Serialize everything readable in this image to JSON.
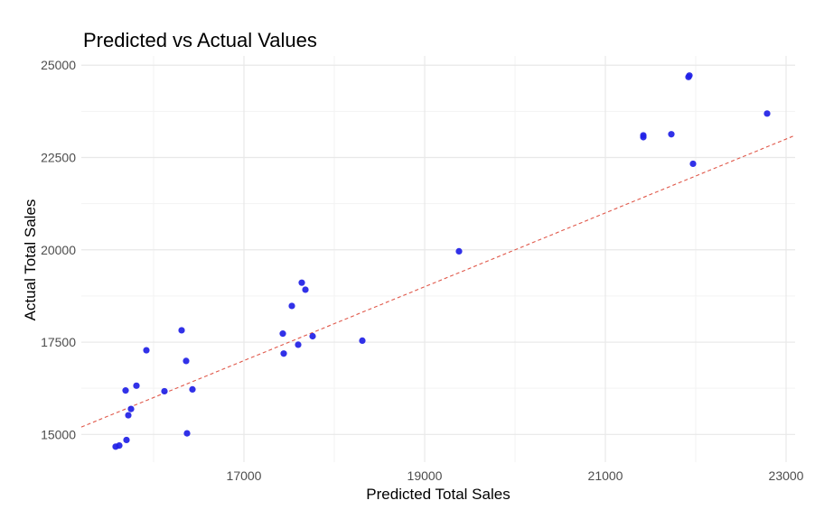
{
  "chart_data": {
    "type": "scatter",
    "title": "Predicted vs Actual Values",
    "xlabel": "Predicted Total Sales",
    "ylabel": "Actual Total Sales",
    "xlim": [
      15200,
      23100
    ],
    "ylim": [
      14250,
      25250
    ],
    "xticks": [
      17000,
      19000,
      21000,
      23000
    ],
    "xtick_labels": [
      "17000",
      "19000",
      "21000",
      "23000"
    ],
    "yticks": [
      15000,
      17500,
      20000,
      22500,
      25000
    ],
    "ytick_labels": [
      "15000",
      "17500",
      "20000",
      "22500",
      "25000"
    ],
    "x_minor_gridlines": [
      16000,
      18000,
      20000,
      22000
    ],
    "y_minor_gridlines": [
      16250,
      18750,
      21250,
      23750
    ],
    "grid": true,
    "legend": "none",
    "point_color": "#1f1fe6",
    "reference_line": {
      "description": "y = x",
      "style": "dashed",
      "color": "#e0584a"
    },
    "points": [
      {
        "x": 15580,
        "y": 14670
      },
      {
        "x": 15620,
        "y": 14700
      },
      {
        "x": 15700,
        "y": 14850
      },
      {
        "x": 15690,
        "y": 16190
      },
      {
        "x": 15720,
        "y": 15520
      },
      {
        "x": 15750,
        "y": 15690
      },
      {
        "x": 15810,
        "y": 16320
      },
      {
        "x": 15920,
        "y": 17280
      },
      {
        "x": 16120,
        "y": 16170
      },
      {
        "x": 16310,
        "y": 17820
      },
      {
        "x": 16360,
        "y": 16990
      },
      {
        "x": 16370,
        "y": 15030
      },
      {
        "x": 16430,
        "y": 16220
      },
      {
        "x": 17430,
        "y": 17730
      },
      {
        "x": 17440,
        "y": 17190
      },
      {
        "x": 17530,
        "y": 18480
      },
      {
        "x": 17600,
        "y": 17430
      },
      {
        "x": 17640,
        "y": 19110
      },
      {
        "x": 17680,
        "y": 18920
      },
      {
        "x": 17760,
        "y": 17660
      },
      {
        "x": 18310,
        "y": 17540
      },
      {
        "x": 19380,
        "y": 19960
      },
      {
        "x": 21420,
        "y": 23050
      },
      {
        "x": 21420,
        "y": 23100
      },
      {
        "x": 21730,
        "y": 23130
      },
      {
        "x": 21920,
        "y": 24680
      },
      {
        "x": 21930,
        "y": 24720
      },
      {
        "x": 21970,
        "y": 22330
      },
      {
        "x": 22790,
        "y": 23690
      }
    ]
  }
}
